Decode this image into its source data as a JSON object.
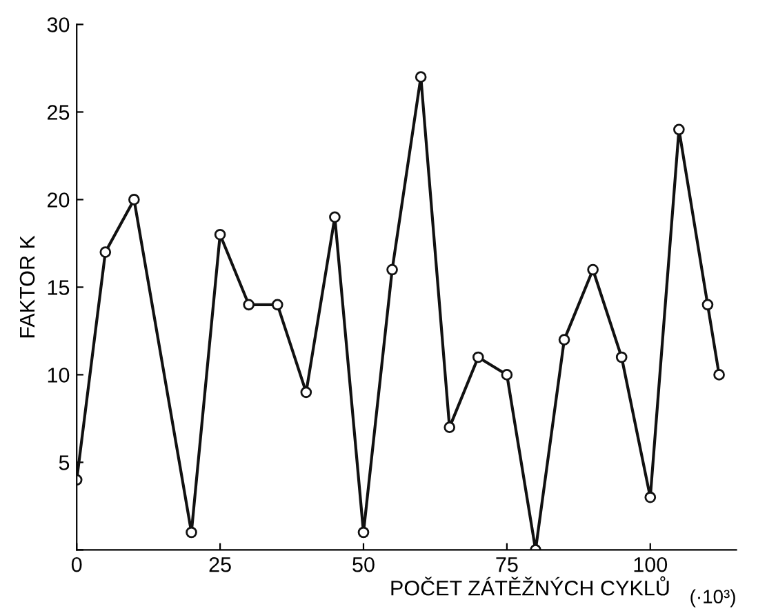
{
  "chart_data": {
    "type": "line",
    "ylabel": "FAKTOR K",
    "xlabel": "POČET ZÁTĚŽNÝCH CYKLŮ",
    "annotations": [
      "(·10³)"
    ],
    "x": [
      0,
      5,
      10,
      20,
      25,
      30,
      35,
      40,
      45,
      50,
      55,
      60,
      65,
      70,
      75,
      80,
      85,
      90,
      95,
      100,
      105,
      110,
      112
    ],
    "series": [
      {
        "color": "#111111",
        "values": [
          4,
          17,
          20,
          1,
          18,
          14,
          14,
          9,
          19,
          1,
          16,
          27,
          7,
          11,
          10,
          0,
          12,
          16,
          11,
          3,
          24,
          14,
          10
        ]
      }
    ],
    "marker": "circle",
    "line_style": "solid",
    "grid": false,
    "legend": false,
    "xlim": [
      0,
      115
    ],
    "ylim": [
      0,
      30
    ],
    "xticks": [
      0,
      25,
      50,
      75,
      100
    ],
    "yticks": [
      {
        "value": 0,
        "label": null
      },
      5,
      10,
      15,
      20,
      25,
      30
    ]
  }
}
